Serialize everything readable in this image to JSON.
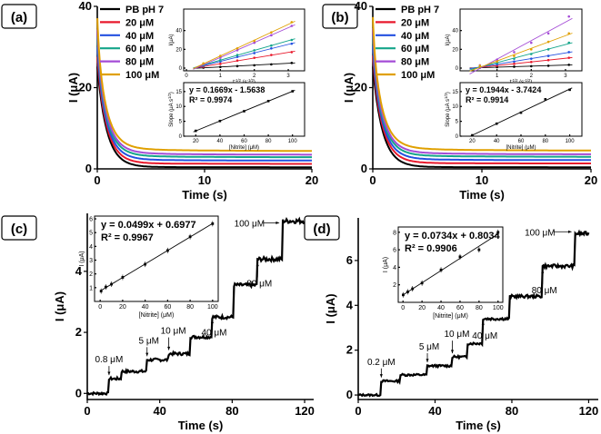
{
  "chart_data": [
    {
      "panel": "(a)",
      "type": "line",
      "xlabel": "Time (s)",
      "ylabel": "I (μA)",
      "xlim": [
        0,
        20
      ],
      "ylim": [
        0,
        40
      ],
      "xticks": [
        0,
        10,
        20
      ],
      "yticks": [
        0,
        20,
        40
      ],
      "legend_position": "top-left",
      "series": [
        {
          "name": "PB pH 7",
          "color": "#000000",
          "steady": 0.4
        },
        {
          "name": "20 μM",
          "color": "#e8192c",
          "steady": 1.2
        },
        {
          "name": "40 μM",
          "color": "#2350e0",
          "steady": 2.0
        },
        {
          "name": "60 μM",
          "color": "#14a58a",
          "steady": 2.8
        },
        {
          "name": "80 μM",
          "color": "#a44bd6",
          "steady": 3.4
        },
        {
          "name": "100 μM",
          "color": "#e0a000",
          "steady": 4.3
        }
      ],
      "inset_top": {
        "xlabel": "t^-1/2 (s^-1/2)",
        "ylabel": "I(μA)",
        "xticks": [
          0,
          1,
          2,
          3
        ],
        "yticks": [
          0,
          20,
          40
        ],
        "xlim": [
          0,
          3.4
        ],
        "ylim": [
          0,
          60
        ],
        "points": [
          {
            "name": "PB pH 7",
            "color": "#000000",
            "x": [
              0.5,
              1.0,
              1.5,
              2.0,
              2.5,
              3.1
            ],
            "y": [
              0.5,
              1.2,
              2.1,
              3.0,
              4.0,
              5.5
            ]
          },
          {
            "name": "20 μM",
            "color": "#e8192c",
            "x": [
              0.5,
              1.0,
              1.5,
              2.0,
              2.5,
              3.1
            ],
            "y": [
              1.5,
              4.5,
              8.0,
              11.0,
              14.0,
              17.0
            ]
          },
          {
            "name": "40 μM",
            "color": "#2350e0",
            "x": [
              0.5,
              1.0,
              1.5,
              2.0,
              2.5,
              3.1
            ],
            "y": [
              2.5,
              7.0,
              12.0,
              16.0,
              21.0,
              26.0
            ]
          },
          {
            "name": "60 μM",
            "color": "#14a58a",
            "x": [
              0.5,
              1.0,
              1.5,
              2.0,
              2.5,
              3.1
            ],
            "y": [
              3.0,
              8.5,
              14.0,
              19.0,
              24.0,
              30.0
            ]
          },
          {
            "name": "80 μM",
            "color": "#a44bd6",
            "x": [
              0.5,
              1.0,
              1.5,
              2.0,
              2.5,
              3.1
            ],
            "y": [
              4.0,
              11.0,
              19.0,
              27.0,
              35.0,
              45.0
            ]
          },
          {
            "name": "100 μM",
            "color": "#e0a000",
            "x": [
              0.5,
              1.0,
              1.5,
              2.0,
              2.5,
              3.1
            ],
            "y": [
              5.0,
              13.0,
              21.0,
              29.0,
              38.0,
              49.0
            ]
          }
        ]
      },
      "inset_bottom": {
        "equation": "y = 0.1669x - 1.5638",
        "r2": "R² = 0.9974",
        "xlabel": "[Nitrite] (μM)",
        "ylabel": "Slope (μA s^1/2)",
        "xticks": [
          20,
          40,
          60,
          80,
          100
        ],
        "yticks": [
          0,
          5,
          10,
          15
        ],
        "xlim": [
          10,
          110
        ],
        "ylim": [
          0,
          18
        ],
        "x": [
          20,
          40,
          60,
          80,
          100
        ],
        "y": [
          1.8,
          5.1,
          8.4,
          11.8,
          15.1
        ]
      }
    },
    {
      "panel": "(b)",
      "type": "line",
      "xlabel": "Time (s)",
      "ylabel": "I (μA)",
      "xlim": [
        0,
        20
      ],
      "ylim": [
        0,
        40
      ],
      "xticks": [
        0,
        10,
        20
      ],
      "yticks": [
        0,
        20,
        40
      ],
      "legend_position": "top-left",
      "series": [
        {
          "name": "PB pH 7",
          "color": "#000000",
          "steady": 0.4
        },
        {
          "name": "20 μM",
          "color": "#e8192c",
          "steady": 1.3
        },
        {
          "name": "40 μM",
          "color": "#2350e0",
          "steady": 2.1
        },
        {
          "name": "60 μM",
          "color": "#14a58a",
          "steady": 2.9
        },
        {
          "name": "80 μM",
          "color": "#a44bd6",
          "steady": 3.5
        },
        {
          "name": "100 μM",
          "color": "#e0a000",
          "steady": 4.4
        }
      ],
      "inset_top": {
        "xlabel": "t^-1/2 (s^-1/2)",
        "ylabel": "I(μA)",
        "xticks": [
          1,
          2,
          3
        ],
        "yticks": [
          0,
          20,
          40
        ],
        "xlim": [
          0,
          3.4
        ],
        "ylim": [
          0,
          60
        ],
        "points": [
          {
            "name": "PB pH 7",
            "color": "#000000",
            "x": [
              0.5,
              1.0,
              1.5,
              2.0,
              2.5,
              3.1
            ],
            "y": [
              0.5,
              1.0,
              1.5,
              2.0,
              2.5,
              3.5
            ]
          },
          {
            "name": "20 μM",
            "color": "#e8192c",
            "x": [
              0.5,
              1.0,
              1.5,
              2.0,
              2.5,
              3.1
            ],
            "y": [
              1.0,
              2.5,
              4.5,
              6.5,
              8.5,
              11.0
            ]
          },
          {
            "name": "40 μM",
            "color": "#2350e0",
            "x": [
              0.5,
              1.0,
              1.5,
              2.0,
              2.5,
              3.1
            ],
            "y": [
              1.5,
              4.0,
              7.0,
              10.0,
              13.0,
              17.0
            ]
          },
          {
            "name": "60 μM",
            "color": "#14a58a",
            "x": [
              0.5,
              1.0,
              1.5,
              2.0,
              2.5,
              3.1
            ],
            "y": [
              2.0,
              5.5,
              10.0,
              15.0,
              20.0,
              27.0
            ]
          },
          {
            "name": "80 μM",
            "color": "#a44bd6",
            "x": [
              0.5,
              1.0,
              1.5,
              2.0,
              2.5,
              3.1
            ],
            "y": [
              3.0,
              9.0,
              17.0,
              27.0,
              37.0,
              55.0
            ]
          },
          {
            "name": "100 μM",
            "color": "#e0a000",
            "x": [
              0.5,
              1.0,
              1.5,
              2.0,
              2.5,
              3.1
            ],
            "y": [
              2.5,
              7.0,
              13.0,
              20.0,
              28.0,
              37.0
            ]
          }
        ]
      },
      "inset_bottom": {
        "equation": "y = 0.1944x - 3.7424",
        "r2": "R² = 0.9914",
        "xlabel": "[Nitrite] (μM)",
        "ylabel": "Slope (μA s^1/2)",
        "xticks": [
          20,
          40,
          60,
          80,
          100
        ],
        "yticks": [
          0,
          5,
          10,
          15
        ],
        "xlim": [
          10,
          110
        ],
        "ylim": [
          0,
          18
        ],
        "x": [
          20,
          40,
          60,
          80,
          100
        ],
        "y": [
          0.3,
          4.2,
          7.9,
          12.4,
          15.6
        ]
      }
    },
    {
      "panel": "(c)",
      "type": "line",
      "xlabel": "Time (s)",
      "ylabel": "I (μA)",
      "xlim": [
        0,
        125
      ],
      "ylim": [
        -0.2,
        5.9
      ],
      "xticks": [
        0,
        40,
        80,
        120
      ],
      "yticks": [
        0,
        2,
        4
      ],
      "steps": [
        {
          "t": 0,
          "i": 0.0
        },
        {
          "t": 12,
          "i": 0.48
        },
        {
          "t": 19,
          "i": 0.72
        },
        {
          "t": 33,
          "i": 1.1
        },
        {
          "t": 45,
          "i": 1.3
        },
        {
          "t": 57,
          "i": 1.85
        },
        {
          "t": 69,
          "i": 2.5
        },
        {
          "t": 81,
          "i": 3.55
        },
        {
          "t": 94,
          "i": 4.4
        },
        {
          "t": 108,
          "i": 5.65
        }
      ],
      "annotations": [
        {
          "text": "0.8 μM",
          "t": 12,
          "i": 0.48
        },
        {
          "text": "5 μM",
          "t": 33,
          "i": 1.1
        },
        {
          "text": "10 μM",
          "t": 45,
          "i": 1.3
        },
        {
          "text": "40 μM",
          "t": 69,
          "i": 2.5
        },
        {
          "text": "80 μM",
          "t": 94,
          "i": 4.4
        },
        {
          "text": "100 μM",
          "t": 108,
          "i": 5.65
        }
      ],
      "inset": {
        "equation": "y = 0.0499x + 0.6977",
        "r2": "R² = 0.9967",
        "xlabel": "[Nitrite] (μM)",
        "ylabel": "I (μA)",
        "xticks": [
          0,
          20,
          40,
          60,
          80,
          100
        ],
        "yticks": [
          1,
          2,
          3,
          4,
          5,
          6
        ],
        "xlim": [
          -5,
          105
        ],
        "ylim": [
          0,
          6.2
        ],
        "x": [
          0.8,
          5,
          10,
          20,
          40,
          60,
          80,
          100
        ],
        "y": [
          0.75,
          1.05,
          1.25,
          1.75,
          2.7,
          3.7,
          4.7,
          5.65
        ]
      }
    },
    {
      "panel": "(d)",
      "type": "line",
      "xlabel": "Time (s)",
      "ylabel": "I (μA)",
      "xlim": [
        0,
        125
      ],
      "ylim": [
        -0.2,
        7.9
      ],
      "xticks": [
        0,
        40,
        80,
        120
      ],
      "yticks": [
        0,
        2,
        4,
        6
      ],
      "steps": [
        {
          "t": 0,
          "i": 0.0
        },
        {
          "t": 12,
          "i": 0.62
        },
        {
          "t": 22,
          "i": 0.9
        },
        {
          "t": 36,
          "i": 1.3
        },
        {
          "t": 49,
          "i": 1.7
        },
        {
          "t": 57,
          "i": 2.3
        },
        {
          "t": 65,
          "i": 3.4
        },
        {
          "t": 79,
          "i": 4.4
        },
        {
          "t": 96,
          "i": 5.75
        },
        {
          "t": 113,
          "i": 7.2
        }
      ],
      "annotations": [
        {
          "text": "0.2 μM",
          "t": 12,
          "i": 0.62
        },
        {
          "text": "5 μM",
          "t": 36,
          "i": 1.3
        },
        {
          "text": "10 μM",
          "t": 49,
          "i": 1.7
        },
        {
          "text": "40 μM",
          "t": 65,
          "i": 3.4
        },
        {
          "text": "80 μM",
          "t": 96,
          "i": 5.75
        },
        {
          "text": "100 μM",
          "t": 113,
          "i": 7.2
        }
      ],
      "inset": {
        "equation": "y = 0.0734x + 0.8034",
        "r2": "R² = 0.9906",
        "xlabel": "[Nitrite] (μM)",
        "ylabel": "I (μA)",
        "xticks": [
          0,
          20,
          40,
          60,
          80,
          100
        ],
        "yticks": [
          2,
          4,
          6,
          8
        ],
        "xlim": [
          -5,
          105
        ],
        "ylim": [
          0,
          8.6
        ],
        "x": [
          0.2,
          5,
          10,
          20,
          40,
          60,
          80,
          100
        ],
        "y": [
          0.85,
          1.2,
          1.55,
          2.2,
          3.7,
          5.2,
          6.0,
          8.0
        ]
      }
    }
  ]
}
